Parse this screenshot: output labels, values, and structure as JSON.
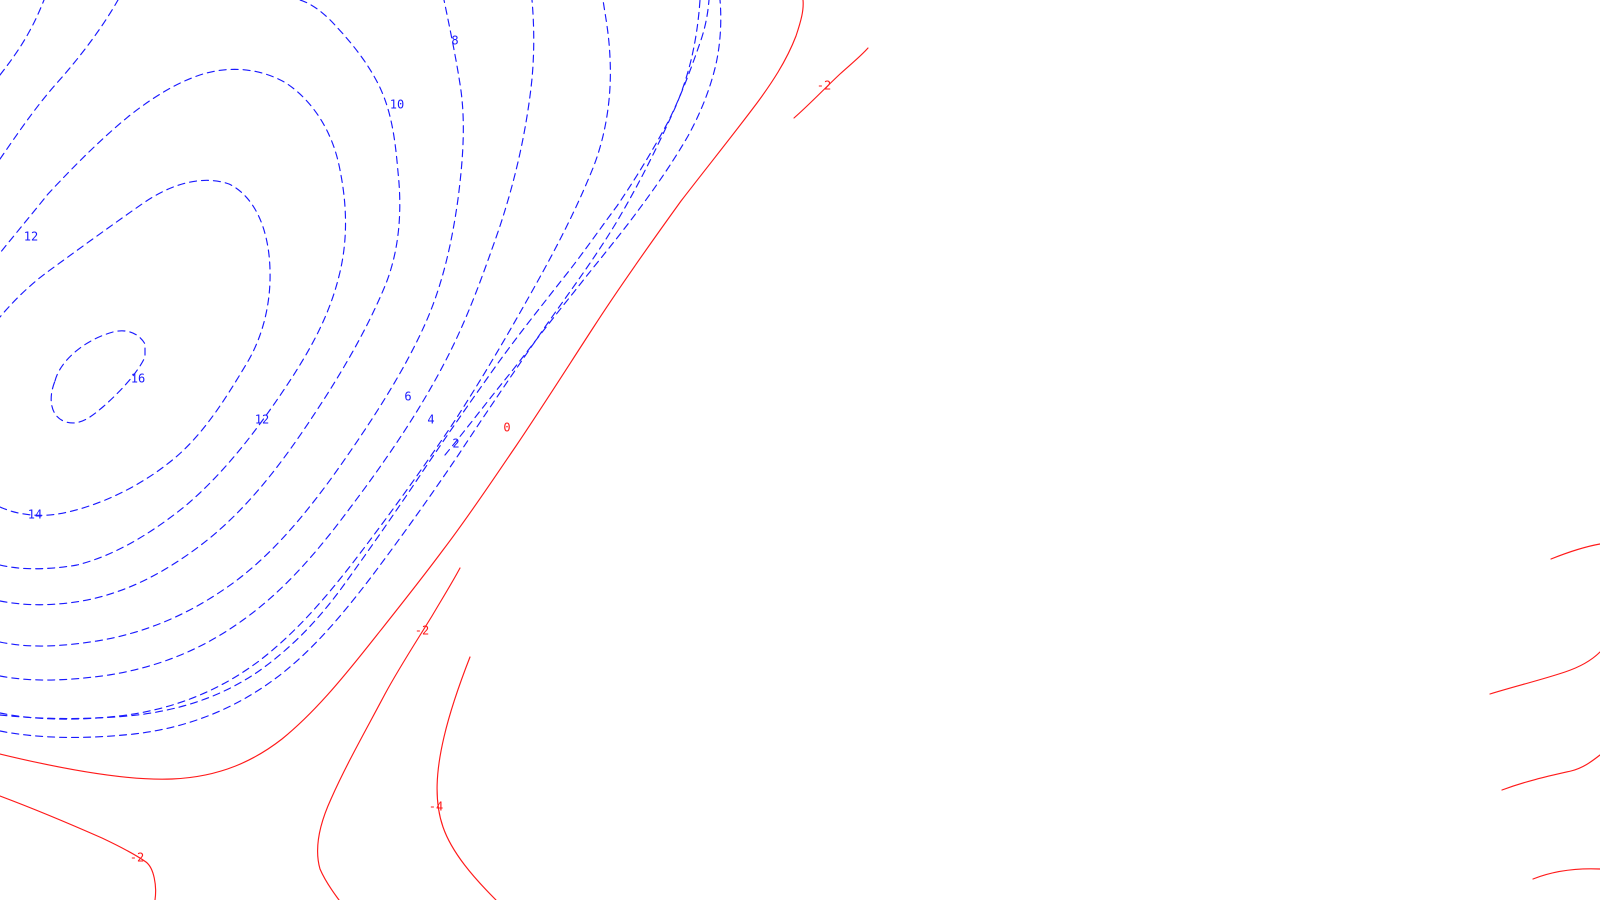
{
  "chart_data": {
    "type": "contour",
    "title": "",
    "xlabel": "",
    "ylabel": "",
    "grid": false,
    "legend": false,
    "colors": {
      "positive": "#1a1aff",
      "negative": "#ff1a1a",
      "background": "#ffffff"
    },
    "line_styles": {
      "positive": "dashed",
      "negative": "solid"
    },
    "visible_contour_levels": [
      16,
      14,
      12,
      10,
      8,
      6,
      4,
      2,
      0,
      -2,
      -4
    ],
    "labels": [
      {
        "id": "label-16",
        "text": "16",
        "value": 16
      },
      {
        "id": "label-14",
        "text": "14",
        "value": 14
      },
      {
        "id": "label-12-left",
        "text": "12",
        "value": 12
      },
      {
        "id": "label-12-center",
        "text": "12",
        "value": 12
      },
      {
        "id": "label-10",
        "text": "10",
        "value": 10
      },
      {
        "id": "label-8",
        "text": "8",
        "value": 8
      },
      {
        "id": "label-6",
        "text": "6",
        "value": 6
      },
      {
        "id": "label-4",
        "text": "4",
        "value": 4
      },
      {
        "id": "label-2",
        "text": "2",
        "value": 2
      },
      {
        "id": "label-0",
        "text": "0",
        "value": 0
      },
      {
        "id": "label-neg2-top",
        "text": "-2",
        "value": -2
      },
      {
        "id": "label-neg2-middle",
        "text": "-2",
        "value": -2
      },
      {
        "id": "label-neg2-bottom",
        "text": "-2",
        "value": -2
      },
      {
        "id": "label-neg4",
        "text": "-4",
        "value": -4
      }
    ]
  }
}
